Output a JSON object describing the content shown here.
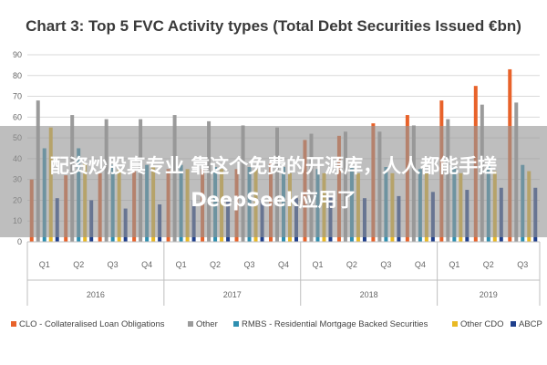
{
  "chart_data": {
    "type": "bar",
    "title": "Chart 3: Top 5 FVC Activity types (Total Debt Securities Issued €bn)",
    "quarters": [
      "Q1",
      "Q2",
      "Q3",
      "Q4",
      "Q1",
      "Q2",
      "Q3",
      "Q4",
      "Q1",
      "Q2",
      "Q3",
      "Q4",
      "Q1",
      "Q2",
      "Q3"
    ],
    "years": [
      {
        "label": "2016",
        "span": 4
      },
      {
        "label": "2017",
        "span": 4
      },
      {
        "label": "2018",
        "span": 4
      },
      {
        "label": "2019",
        "span": 3
      }
    ],
    "ylim": [
      0,
      90
    ],
    "yticks": [
      "0",
      "10",
      "20",
      "30",
      "40",
      "50",
      "60",
      "70",
      "80",
      "90"
    ],
    "grid": true,
    "legend_position": "bottom",
    "series": [
      {
        "name": "CLO - Collateralised Loan Obligations",
        "color": "#e8622a",
        "values": [
          30,
          32,
          33,
          34,
          35,
          35,
          35,
          38,
          49,
          51,
          57,
          61,
          68,
          75,
          83
        ]
      },
      {
        "name": "Other",
        "color": "#9b9b9b",
        "values": [
          68,
          61,
          59,
          59,
          61,
          58,
          56,
          55,
          52,
          53,
          53,
          56,
          59,
          66,
          67
        ]
      },
      {
        "name": "RMBS - Residential Mortgage Backed Securities",
        "color": "#2e8fb0",
        "values": [
          45,
          45,
          37,
          37,
          37,
          36,
          36,
          36,
          35,
          36,
          36,
          35,
          36,
          37,
          37
        ]
      },
      {
        "name": "Other CDO",
        "color": "#e9b924",
        "values": [
          55,
          38,
          35,
          36,
          35,
          35,
          35,
          33,
          33,
          33,
          33,
          33,
          33,
          34,
          34
        ]
      },
      {
        "name": "ABCP",
        "color": "#1f3f8c",
        "values": [
          21,
          20,
          16,
          18,
          20,
          20,
          20,
          21,
          22,
          21,
          22,
          24,
          25,
          26,
          26
        ]
      }
    ]
  },
  "overlay": {
    "line1": "配资炒股真专业 靠这个免费的开源库，人人都能手搓",
    "line2": "DeepSeek应用了"
  }
}
